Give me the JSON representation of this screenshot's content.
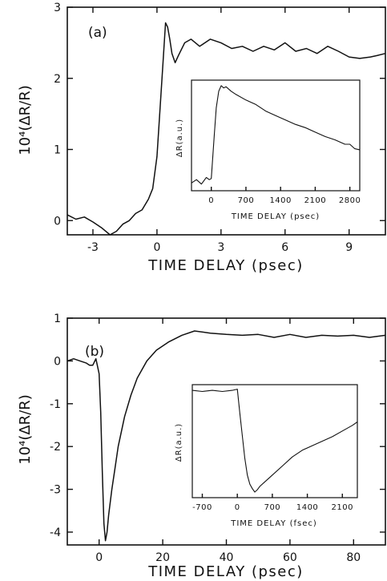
{
  "chart_data": [
    {
      "type": "line",
      "panel_label": "(a)",
      "xlabel": "TIME DELAY (psec)",
      "ylabel": "10⁴(ΔR/R)",
      "xlim": [
        -4.2,
        10.7
      ],
      "ylim": [
        -0.2,
        3.0
      ],
      "xticks": [
        -3,
        0,
        3,
        6,
        9
      ],
      "xtick_labels": [
        "-3",
        "0",
        "3",
        "6",
        "9"
      ],
      "yticks": [
        0,
        1,
        2,
        3
      ],
      "ytick_labels": [
        "0",
        "1",
        "2",
        "3"
      ],
      "series": [
        {
          "x": [
            -4.2,
            -3.8,
            -3.4,
            -3.0,
            -2.6,
            -2.2,
            -1.9,
            -1.6,
            -1.3,
            -1.0,
            -0.7,
            -0.4,
            -0.2,
            0.0,
            0.15,
            0.3,
            0.4,
            0.5,
            0.6,
            0.7,
            0.85,
            1.0,
            1.3,
            1.6,
            2.0,
            2.5,
            3.0,
            3.5,
            4.0,
            4.5,
            5.0,
            5.5,
            6.0,
            6.5,
            7.0,
            7.5,
            8.0,
            8.5,
            9.0,
            9.5,
            10.0,
            10.3,
            10.7
          ],
          "y": [
            0.08,
            0.02,
            0.05,
            -0.02,
            -0.1,
            -0.2,
            -0.15,
            -0.05,
            0.0,
            0.1,
            0.15,
            0.3,
            0.45,
            0.9,
            1.6,
            2.3,
            2.78,
            2.72,
            2.55,
            2.35,
            2.22,
            2.32,
            2.5,
            2.55,
            2.45,
            2.55,
            2.5,
            2.42,
            2.45,
            2.38,
            2.45,
            2.4,
            2.5,
            2.38,
            2.42,
            2.35,
            2.45,
            2.38,
            2.3,
            2.28,
            2.3,
            2.32,
            2.35
          ]
        }
      ],
      "inset": {
        "type": "line",
        "xlabel": "TIME DELAY (psec)",
        "ylabel": "ΔR(a.u.)",
        "xlim": [
          -400,
          3000
        ],
        "ylim": [
          0,
          1
        ],
        "xticks": [
          0,
          700,
          1400,
          2100,
          2800
        ],
        "xtick_labels": [
          "0",
          "700",
          "1400",
          "2100",
          "2800"
        ],
        "series": [
          {
            "x": [
              -400,
              -300,
              -200,
              -100,
              -40,
              0,
              60,
              100,
              150,
              200,
              250,
              300,
              400,
              500,
              700,
              900,
              1100,
              1300,
              1500,
              1700,
              1900,
              2100,
              2300,
              2500,
              2700,
              2800,
              2900,
              3000
            ],
            "y": [
              0.07,
              0.1,
              0.06,
              0.12,
              0.1,
              0.11,
              0.5,
              0.75,
              0.9,
              0.95,
              0.93,
              0.94,
              0.9,
              0.87,
              0.82,
              0.78,
              0.72,
              0.68,
              0.64,
              0.6,
              0.57,
              0.53,
              0.49,
              0.46,
              0.42,
              0.42,
              0.38,
              0.37
            ]
          }
        ]
      }
    },
    {
      "type": "line",
      "panel_label": "(b)",
      "xlabel": "TIME DELAY (psec)",
      "ylabel": "10⁴(ΔR/R)",
      "xlim": [
        -10,
        90
      ],
      "ylim": [
        -4.3,
        1.0
      ],
      "xticks": [
        0,
        20,
        40,
        60,
        80
      ],
      "xtick_labels": [
        "0",
        "20",
        "40",
        "60",
        "80"
      ],
      "yticks": [
        1,
        0,
        -1,
        -2,
        -3,
        -4
      ],
      "ytick_labels": [
        "1",
        "0",
        "-1",
        "-2",
        "-3",
        "-4"
      ],
      "series": [
        {
          "x": [
            -10,
            -8,
            -6,
            -4,
            -3,
            -2,
            -1,
            0,
            0.5,
            1,
            1.5,
            2,
            2.5,
            3,
            4,
            5,
            6,
            8,
            10,
            12,
            15,
            18,
            22,
            26,
            30,
            35,
            40,
            45,
            50,
            55,
            60,
            65,
            70,
            75,
            80,
            85,
            90
          ],
          "y": [
            0.0,
            0.05,
            0.0,
            -0.05,
            -0.1,
            -0.1,
            0.05,
            -0.3,
            -1.2,
            -2.6,
            -3.8,
            -4.2,
            -4.0,
            -3.6,
            -3.0,
            -2.5,
            -2.0,
            -1.3,
            -0.8,
            -0.4,
            0.0,
            0.25,
            0.45,
            0.6,
            0.7,
            0.65,
            0.62,
            0.6,
            0.62,
            0.55,
            0.62,
            0.55,
            0.6,
            0.58,
            0.6,
            0.55,
            0.6
          ]
        }
      ],
      "inset": {
        "type": "line",
        "xlabel": "TIME DELAY (fsec)",
        "ylabel": "ΔR(a.u.)",
        "xlim": [
          -900,
          2400
        ],
        "ylim": [
          0,
          1
        ],
        "xticks": [
          -700,
          0,
          700,
          1400,
          2100
        ],
        "xtick_labels": [
          "-700",
          "0",
          "700",
          "1400",
          "2100"
        ],
        "series": [
          {
            "x": [
              -900,
              -700,
              -500,
              -300,
              -100,
              0,
              50,
              100,
              150,
              200,
              250,
              300,
              350,
              400,
              450,
              550,
              700,
              900,
              1100,
              1300,
              1500,
              1700,
              1900,
              2100,
              2300,
              2400
            ],
            "y": [
              0.95,
              0.94,
              0.95,
              0.94,
              0.95,
              0.96,
              0.75,
              0.55,
              0.35,
              0.2,
              0.12,
              0.08,
              0.05,
              0.07,
              0.1,
              0.14,
              0.2,
              0.28,
              0.36,
              0.42,
              0.46,
              0.5,
              0.54,
              0.59,
              0.64,
              0.67
            ]
          }
        ]
      }
    }
  ]
}
